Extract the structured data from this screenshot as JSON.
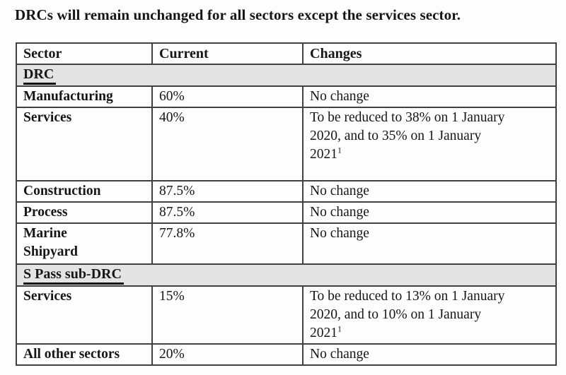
{
  "page": {
    "title": "DRCs will remain unchanged for all sectors except the services sector."
  },
  "table": {
    "headers": [
      "Sector",
      "Current",
      "Changes"
    ],
    "rows": [
      {
        "label": "DRC"
      },
      {
        "sector": "Manufacturing",
        "current": "60%",
        "changes": "No change"
      },
      {
        "sector": "Services",
        "current": "40%",
        "changes": "To be reduced to 38% on 1 January\n2020, and to 35% on 1 January\n2021",
        "sup": "1"
      },
      {
        "sector": "Construction",
        "current": "87.5%",
        "changes": "No change"
      },
      {
        "sector": "Process",
        "current": "87.5%",
        "changes": "No change"
      },
      {
        "sector": "Marine\nShipyard",
        "current": "77.8%",
        "changes": "No change"
      },
      {
        "label": "S Pass sub-DRC"
      },
      {
        "sector": "Services",
        "current": "15%",
        "changes": "To be reduced to 13% on 1 January\n2020, and to 10% on 1 January\n2021",
        "sup": "1"
      },
      {
        "sector": "All other sectors",
        "current": "20%",
        "changes": "No change"
      }
    ],
    "colors": {
      "section_row_background": "#e5e4e4",
      "table_border": "#404040",
      "text": "#161616",
      "page_background": "#fdfdfd"
    }
  }
}
